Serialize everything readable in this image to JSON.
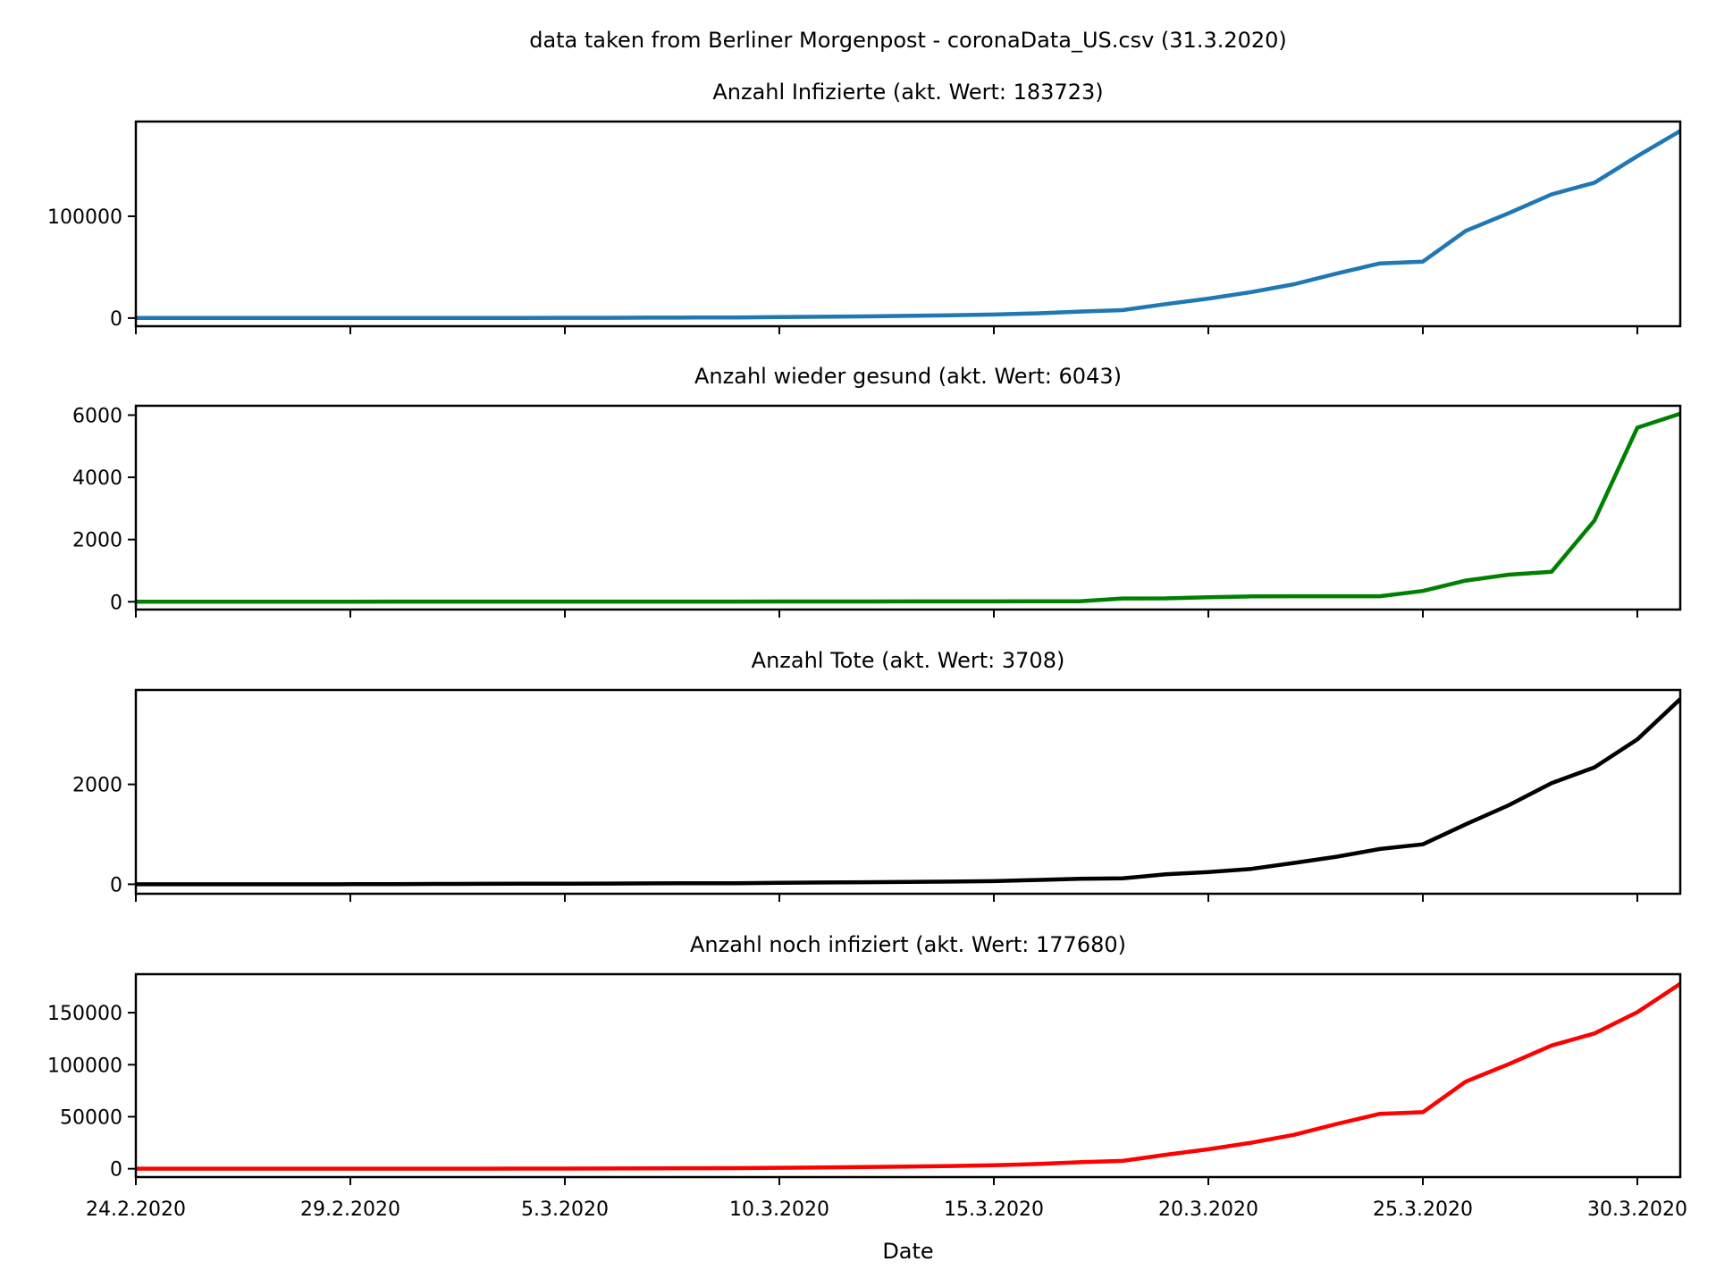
{
  "suptitle": "data taken from Berliner Morgenpost - coronaData_US.csv (31.3.2020)",
  "colors": {
    "blue": "#1f77b4",
    "green": "#008000",
    "black": "#000000",
    "red": "#ff0000"
  },
  "chart_data": [
    {
      "type": "line",
      "title": "Anzahl Infizierte (akt. Wert: 183723)",
      "xlabel": "",
      "ylabel": "",
      "color": "blue",
      "x": [
        "24.2.2020",
        "25.2.2020",
        "26.2.2020",
        "27.2.2020",
        "28.2.2020",
        "29.2.2020",
        "1.3.2020",
        "2.3.2020",
        "3.3.2020",
        "4.3.2020",
        "5.3.2020",
        "6.3.2020",
        "7.3.2020",
        "8.3.2020",
        "9.3.2020",
        "10.3.2020",
        "11.3.2020",
        "12.3.2020",
        "13.3.2020",
        "14.3.2020",
        "15.3.2020",
        "16.3.2020",
        "17.3.2020",
        "18.3.2020",
        "19.3.2020",
        "20.3.2020",
        "21.3.2020",
        "22.3.2020",
        "23.3.2020",
        "24.3.2020",
        "25.3.2020",
        "26.3.2020",
        "27.3.2020",
        "28.3.2020",
        "29.3.2020",
        "30.3.2020",
        "31.3.2020"
      ],
      "values": [
        53,
        53,
        59,
        60,
        62,
        64,
        74,
        98,
        118,
        149,
        217,
        262,
        402,
        518,
        583,
        959,
        1281,
        1663,
        2179,
        2727,
        3499,
        4632,
        6421,
        7783,
        13677,
        19100,
        25489,
        33276,
        43847,
        53740,
        55500,
        85612,
        102939,
        121478,
        133000,
        159000,
        183723
      ],
      "ylim": [
        -8000,
        193000
      ],
      "yticks": [
        0,
        100000
      ],
      "yticklabels": [
        "0",
        "100000"
      ],
      "xticks": [
        "24.2.2020",
        "29.2.2020",
        "5.3.2020",
        "10.3.2020",
        "15.3.2020",
        "20.3.2020",
        "25.3.2020",
        "30.3.2020"
      ],
      "grid": false
    },
    {
      "type": "line",
      "title": "Anzahl wieder gesund (akt. Wert: 6043)",
      "xlabel": "",
      "ylabel": "",
      "color": "green",
      "x": [
        "24.2.2020",
        "25.2.2020",
        "26.2.2020",
        "27.2.2020",
        "28.2.2020",
        "29.2.2020",
        "1.3.2020",
        "2.3.2020",
        "3.3.2020",
        "4.3.2020",
        "5.3.2020",
        "6.3.2020",
        "7.3.2020",
        "8.3.2020",
        "9.3.2020",
        "10.3.2020",
        "11.3.2020",
        "12.3.2020",
        "13.3.2020",
        "14.3.2020",
        "15.3.2020",
        "16.3.2020",
        "17.3.2020",
        "18.3.2020",
        "19.3.2020",
        "20.3.2020",
        "21.3.2020",
        "22.3.2020",
        "23.3.2020",
        "24.3.2020",
        "25.3.2020",
        "26.3.2020",
        "27.3.2020",
        "28.3.2020",
        "29.3.2020",
        "30.3.2020",
        "31.3.2020"
      ],
      "values": [
        0,
        0,
        0,
        0,
        0,
        0,
        7,
        7,
        7,
        7,
        7,
        7,
        7,
        7,
        7,
        8,
        8,
        8,
        12,
        12,
        12,
        17,
        17,
        106,
        108,
        147,
        171,
        178,
        178,
        178,
        348,
        681,
        869,
        961,
        2612,
        5595,
        6043
      ],
      "ylim": [
        -250,
        6300
      ],
      "yticks": [
        0,
        2000,
        4000,
        6000
      ],
      "yticklabels": [
        "0",
        "2000",
        "4000",
        "6000"
      ],
      "xticks": [
        "24.2.2020",
        "29.2.2020",
        "5.3.2020",
        "10.3.2020",
        "15.3.2020",
        "20.3.2020",
        "25.3.2020",
        "30.3.2020"
      ],
      "grid": false
    },
    {
      "type": "line",
      "title": "Anzahl Tote (akt. Wert: 3708)",
      "xlabel": "",
      "ylabel": "",
      "color": "black",
      "x": [
        "24.2.2020",
        "25.2.2020",
        "26.2.2020",
        "27.2.2020",
        "28.2.2020",
        "29.2.2020",
        "1.3.2020",
        "2.3.2020",
        "3.3.2020",
        "4.3.2020",
        "5.3.2020",
        "6.3.2020",
        "7.3.2020",
        "8.3.2020",
        "9.3.2020",
        "10.3.2020",
        "11.3.2020",
        "12.3.2020",
        "13.3.2020",
        "14.3.2020",
        "15.3.2020",
        "16.3.2020",
        "17.3.2020",
        "18.3.2020",
        "19.3.2020",
        "20.3.2020",
        "21.3.2020",
        "22.3.2020",
        "23.3.2020",
        "24.3.2020",
        "25.3.2020",
        "26.3.2020",
        "27.3.2020",
        "28.3.2020",
        "29.3.2020",
        "30.3.2020",
        "31.3.2020"
      ],
      "values": [
        0,
        0,
        0,
        0,
        0,
        1,
        1,
        6,
        9,
        11,
        12,
        14,
        17,
        21,
        22,
        28,
        36,
        40,
        47,
        54,
        63,
        85,
        108,
        118,
        200,
        244,
        307,
        427,
        552,
        706,
        800,
        1200,
        1581,
        2026,
        2340,
        2900,
        3708
      ],
      "ylim": [
        -190,
        3890
      ],
      "yticks": [
        0,
        2000
      ],
      "yticklabels": [
        "0",
        "2000"
      ],
      "xticks": [
        "24.2.2020",
        "29.2.2020",
        "5.3.2020",
        "10.3.2020",
        "15.3.2020",
        "20.3.2020",
        "25.3.2020",
        "30.3.2020"
      ],
      "grid": false
    },
    {
      "type": "line",
      "title": "Anzahl noch infiziert (akt. Wert: 177680)",
      "xlabel": "Date",
      "ylabel": "",
      "color": "red",
      "x": [
        "24.2.2020",
        "25.2.2020",
        "26.2.2020",
        "27.2.2020",
        "28.2.2020",
        "29.2.2020",
        "1.3.2020",
        "2.3.2020",
        "3.3.2020",
        "4.3.2020",
        "5.3.2020",
        "6.3.2020",
        "7.3.2020",
        "8.3.2020",
        "9.3.2020",
        "10.3.2020",
        "11.3.2020",
        "12.3.2020",
        "13.3.2020",
        "14.3.2020",
        "15.3.2020",
        "16.3.2020",
        "17.3.2020",
        "18.3.2020",
        "19.3.2020",
        "20.3.2020",
        "21.3.2020",
        "22.3.2020",
        "23.3.2020",
        "24.3.2020",
        "25.3.2020",
        "26.3.2020",
        "27.3.2020",
        "28.3.2020",
        "29.3.2020",
        "30.3.2020",
        "31.3.2020"
      ],
      "values": [
        53,
        53,
        59,
        60,
        62,
        63,
        66,
        85,
        102,
        131,
        198,
        241,
        378,
        490,
        554,
        923,
        1237,
        1615,
        2120,
        2661,
        3424,
        4530,
        6296,
        7559,
        13369,
        18709,
        25011,
        32671,
        43117,
        52856,
        54352,
        83731,
        100489,
        118491,
        130048,
        150505,
        177680
      ],
      "ylim": [
        -8000,
        187000
      ],
      "yticks": [
        0,
        50000,
        100000,
        150000
      ],
      "yticklabels": [
        "0",
        "50000",
        "100000",
        "150000"
      ],
      "xticks": [
        "24.2.2020",
        "29.2.2020",
        "5.3.2020",
        "10.3.2020",
        "15.3.2020",
        "20.3.2020",
        "25.3.2020",
        "30.3.2020"
      ],
      "grid": false
    }
  ]
}
